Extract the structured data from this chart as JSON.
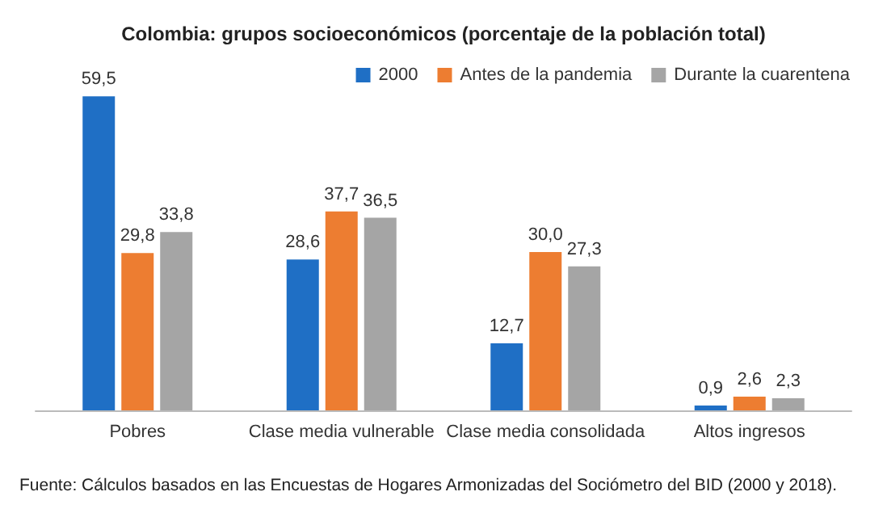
{
  "chart_data": {
    "type": "bar",
    "title": "Colombia: grupos socioeconómicos (porcentaje de la población total)",
    "categories": [
      "Pobres",
      "Clase media vulnerable",
      "Clase media consolidada",
      "Altos ingresos"
    ],
    "series": [
      {
        "name": "2000",
        "color": "#1f6fc5",
        "values": [
          59.5,
          28.6,
          12.7,
          0.9
        ],
        "value_labels": [
          "59,5",
          "28,6",
          "12,7",
          "0,9"
        ]
      },
      {
        "name": "Antes de la pandemia",
        "color": "#ed7d31",
        "values": [
          29.8,
          37.7,
          30.0,
          2.6
        ],
        "value_labels": [
          "29,8",
          "37,7",
          "30,0",
          "2,6"
        ]
      },
      {
        "name": "Durante la cuarentena",
        "color": "#a5a5a5",
        "values": [
          33.8,
          36.5,
          27.3,
          2.3
        ],
        "value_labels": [
          "33,8",
          "36,5",
          "27,3",
          "2,3"
        ]
      }
    ],
    "legend": "top right",
    "grid": false,
    "annotations": [
      "Fuente: Cálculos basados en las Encuestas de Hogares Armonizadas del Sociómetro del BID (2000 y 2018)."
    ]
  }
}
